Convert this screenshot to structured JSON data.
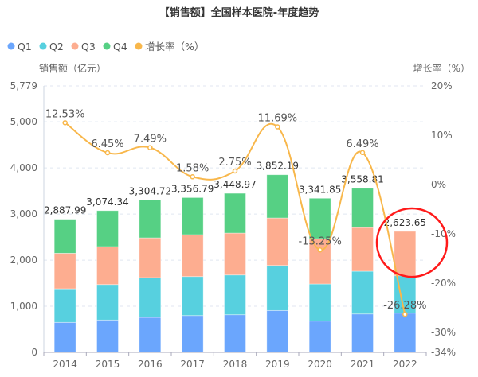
{
  "chart_data": {
    "type": "bar",
    "stacked": true,
    "title": "【销售额】全国样本医院-年度趋势",
    "ylabel": "销售额（亿元）",
    "y2label": "增长率（%）",
    "ylim": [
      0,
      5779
    ],
    "y2lim": [
      -34,
      20
    ],
    "yticks": [
      "0",
      "1,000",
      "2,000",
      "3,000",
      "4,000",
      "5,000",
      "5,779"
    ],
    "ytick_values": [
      0,
      1000,
      2000,
      3000,
      4000,
      5000,
      5779
    ],
    "y2ticks": [
      "-34%",
      "-30%",
      "-20%",
      "-10%",
      "0%",
      "10%",
      "20%"
    ],
    "y2tick_values": [
      -34,
      -30,
      -20,
      -10,
      0,
      10,
      20
    ],
    "grid": true,
    "legend_placement": "top-left",
    "categories": [
      "2014",
      "2015",
      "2016",
      "2017",
      "2018",
      "2019",
      "2020",
      "2021",
      "2022"
    ],
    "series": [
      {
        "name": "Q1",
        "color": "#6ba6fd",
        "values": [
          650,
          702,
          759,
          798,
          816,
          908,
          678,
          833,
          850
        ]
      },
      {
        "name": "Q2",
        "color": "#57d0df",
        "values": [
          729,
          769,
          862,
          846,
          862,
          977,
          805,
          926,
          811
        ]
      },
      {
        "name": "Q3",
        "color": "#fdad90",
        "values": [
          771,
          822,
          862,
          908,
          908,
          1029,
          983,
          948,
          962.65
        ]
      },
      {
        "name": "Q4",
        "color": "#56d084",
        "values": [
          737.99,
          781.34,
          821.72,
          804.79,
          862.97,
          938.19,
          875.85,
          851.81,
          0
        ]
      }
    ],
    "totals": [
      "2,887.99",
      "3,074.34",
      "3,304.72",
      "3,356.79",
      "3,448.97",
      "3,852.19",
      "3,341.85",
      "3,558.81",
      "2,623.65"
    ],
    "line": {
      "name": "增长率（%）",
      "color": "#f8b74b",
      "axis": "right",
      "values": [
        12.53,
        6.45,
        7.49,
        1.58,
        2.75,
        11.69,
        -13.25,
        6.49,
        -26.28
      ],
      "labels": [
        "12.53%",
        "6.45%",
        "7.49%",
        "1.58%",
        "2.75%",
        "11.69%",
        "-13.25%",
        "6.49%",
        "-26.28%"
      ]
    },
    "annotation": {
      "shape": "circle",
      "color": "#ff1a1a",
      "target": "2022"
    }
  }
}
